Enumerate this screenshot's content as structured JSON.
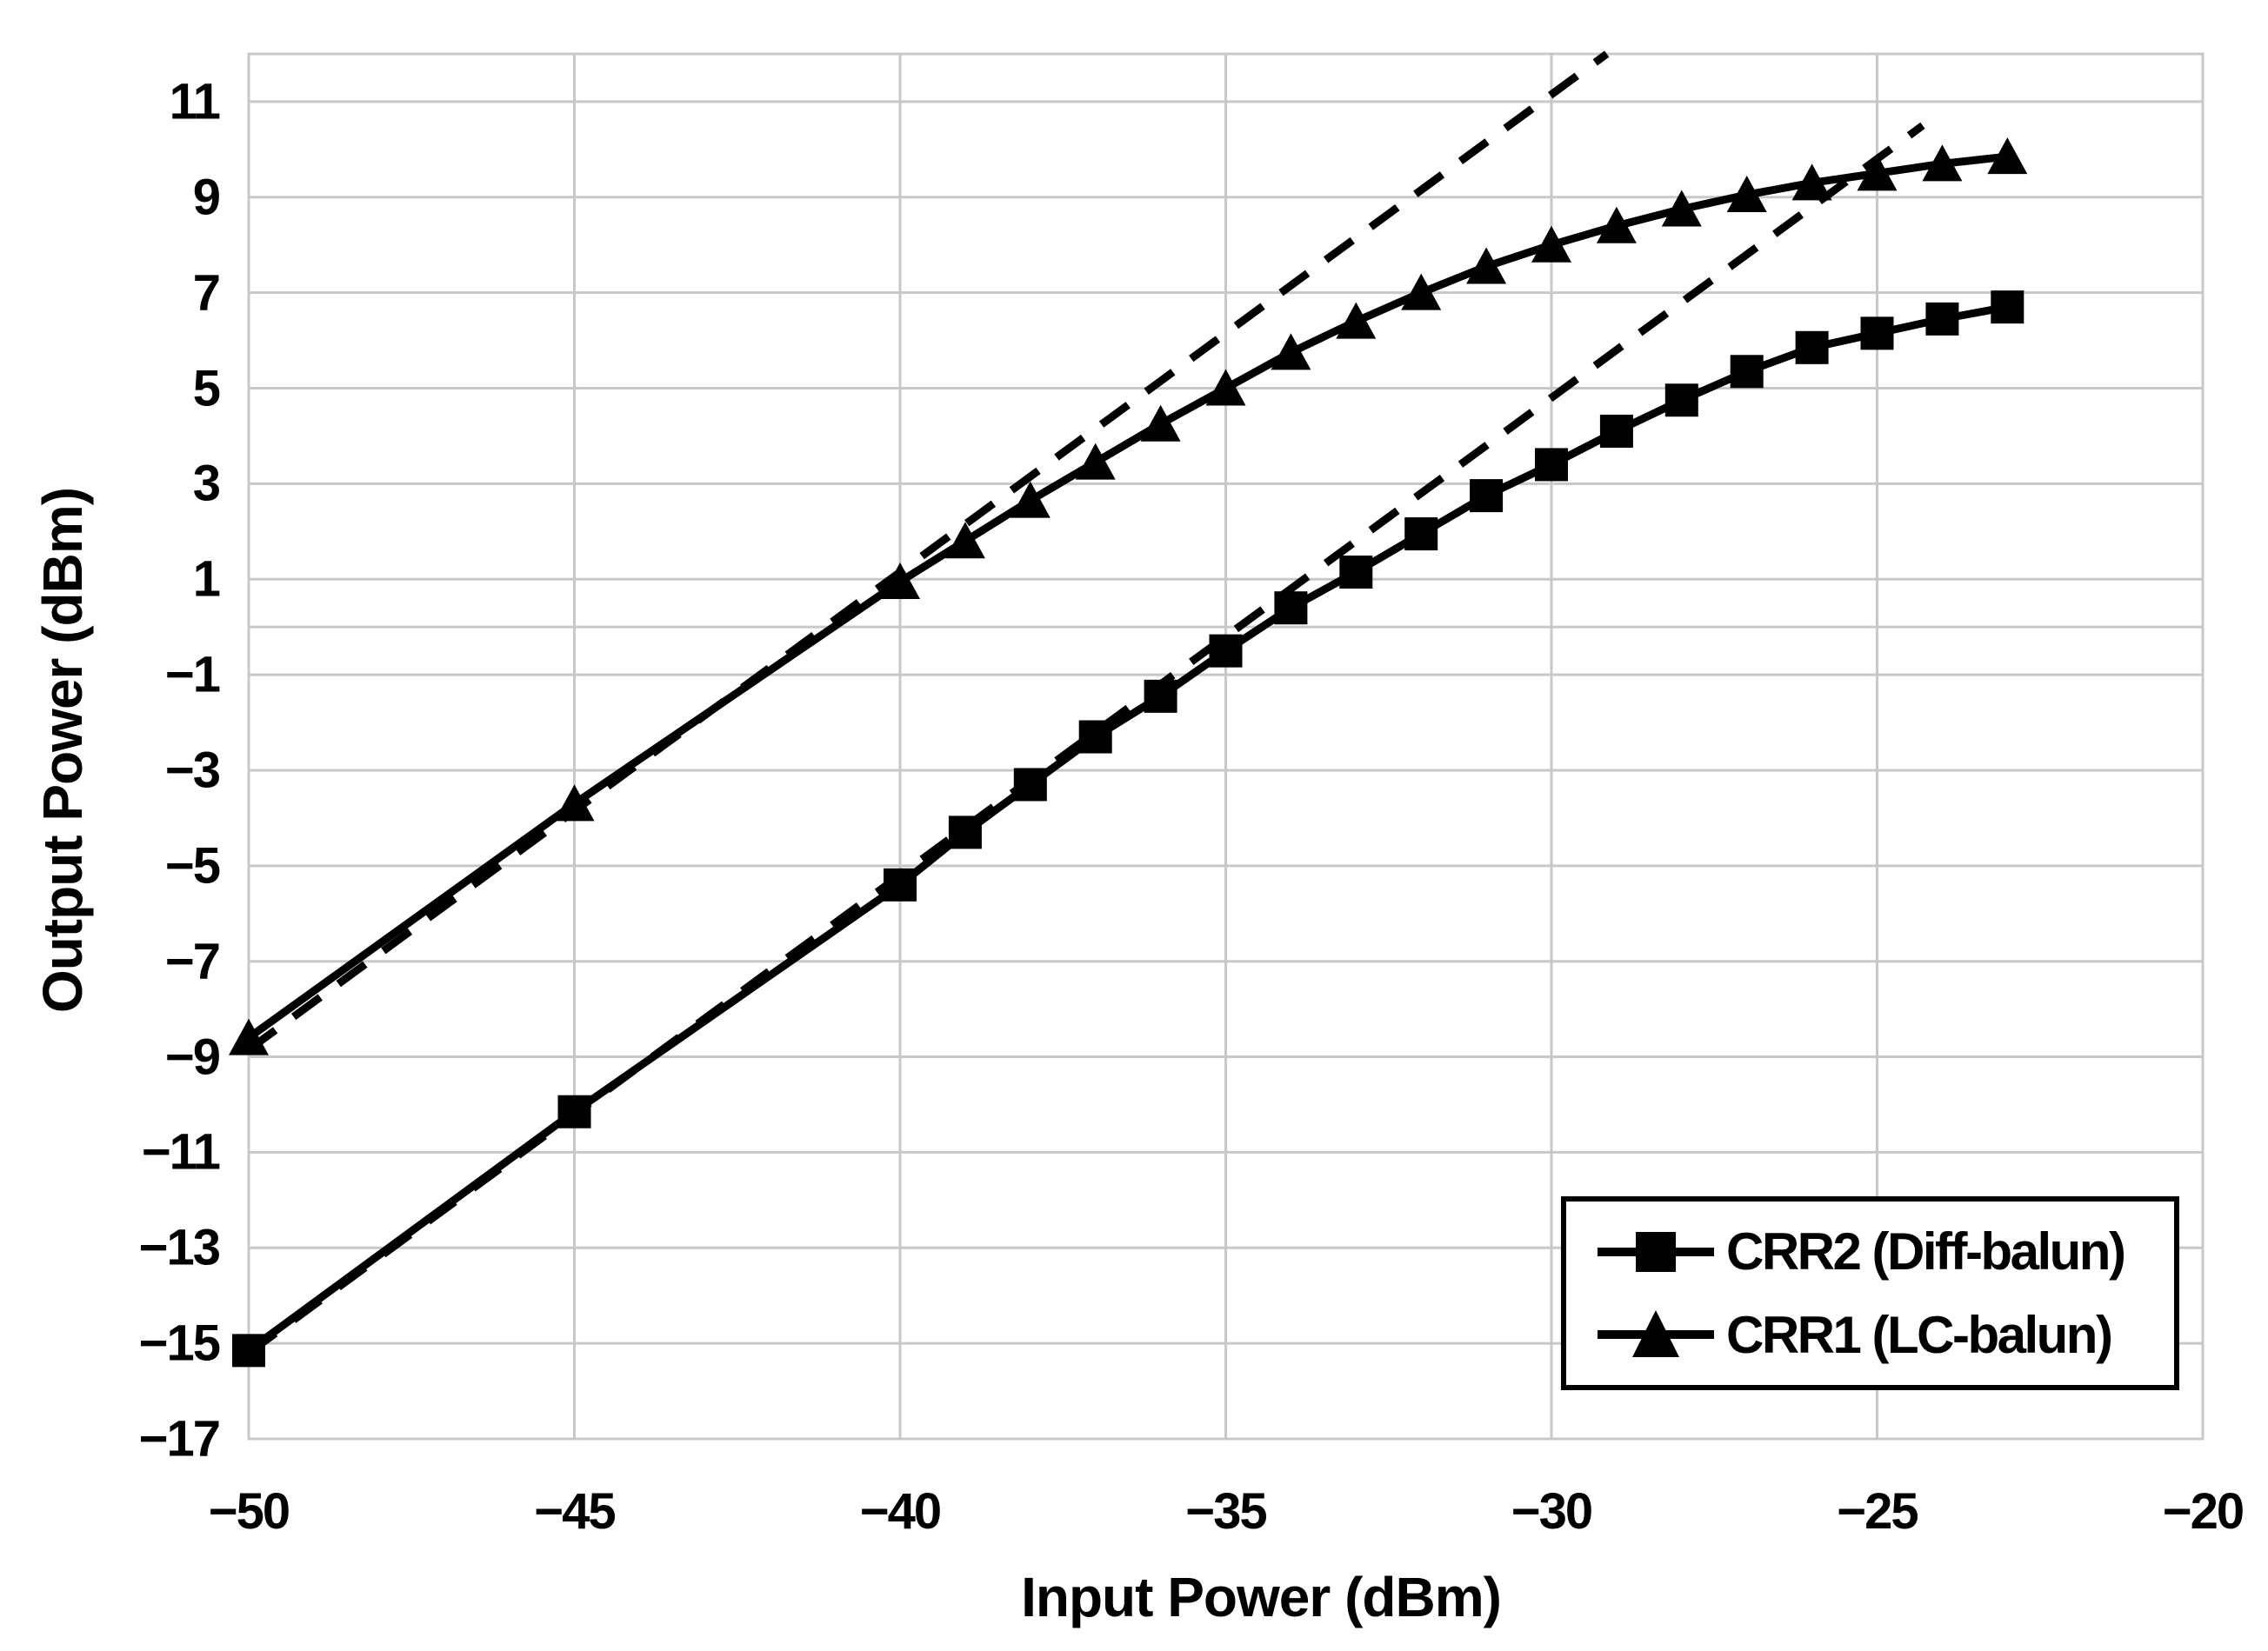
{
  "chart_data": {
    "type": "line",
    "title": "",
    "xlabel": "Input Power (dBm)",
    "ylabel": "Output Power (dBm)",
    "xlim": [
      -50,
      -20
    ],
    "ylim": [
      -17,
      12
    ],
    "x_ticks": [
      -50,
      -45,
      -40,
      -35,
      -30,
      -25,
      -20
    ],
    "y_ticks": [
      11,
      9,
      7,
      5,
      3,
      1,
      -1,
      -3,
      -5,
      -7,
      -9,
      -11,
      -13,
      -15,
      -17
    ],
    "grid": true,
    "zero_axis_line": true,
    "legend_position": "inside lower right",
    "series": [
      {
        "name": "CRR2 (Diff-balun)",
        "marker": "square",
        "style": "solid",
        "x": [
          -50,
          -45,
          -40,
          -39,
          -38,
          -37,
          -36,
          -35,
          -34,
          -33,
          -32,
          -31,
          -30,
          -29,
          -28,
          -27,
          -26,
          -25,
          -24,
          -23
        ],
        "y": [
          -15.15,
          -10.15,
          -5.4,
          -4.3,
          -3.3,
          -2.3,
          -1.45,
          -0.5,
          0.4,
          1.15,
          1.95,
          2.75,
          3.4,
          4.1,
          4.75,
          5.35,
          5.85,
          6.15,
          6.45,
          6.7
        ]
      },
      {
        "name": "CRR1 (LC-balun)",
        "marker": "triangle",
        "style": "solid",
        "x": [
          -50,
          -45,
          -40,
          -39,
          -38,
          -37,
          -36,
          -35,
          -34,
          -33,
          -32,
          -31,
          -30,
          -29,
          -28,
          -27,
          -26,
          -25,
          -24,
          -23
        ],
        "y": [
          -8.6,
          -3.7,
          0.95,
          1.8,
          2.65,
          3.45,
          4.25,
          5.0,
          5.75,
          6.4,
          7.0,
          7.55,
          8.0,
          8.4,
          8.75,
          9.05,
          9.3,
          9.5,
          9.7,
          9.85
        ]
      },
      {
        "name": "CRR1 linear reference",
        "marker": "none",
        "style": "dashed",
        "show_in_legend": false,
        "x": [
          -50,
          -29.15
        ],
        "y": [
          -8.85,
          12.0
        ]
      },
      {
        "name": "CRR2 linear reference",
        "marker": "none",
        "style": "dashed",
        "show_in_legend": false,
        "x": [
          -50,
          -24.3
        ],
        "y": [
          -15.2,
          10.5
        ]
      }
    ]
  },
  "colors": {
    "series": "#000000",
    "grid": "#c8c8c8",
    "frame": "#c8c8c8",
    "text": "#000000",
    "background": "#ffffff"
  }
}
